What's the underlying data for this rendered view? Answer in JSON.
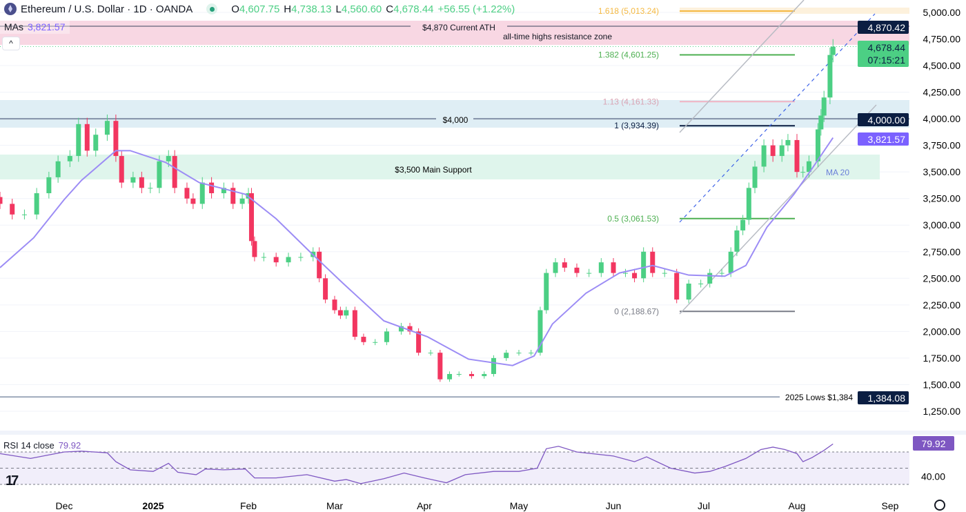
{
  "header": {
    "symbol": "Ethereum / U.S. Dollar · 1D · OANDA",
    "o_label": "O",
    "o": "4,607.75",
    "h_label": "H",
    "h": "4,738.13",
    "l_label": "L",
    "l": "4,560.60",
    "c_label": "C",
    "c": "4,678.44",
    "change": "+56.55 (+1.22%)"
  },
  "mas": {
    "label": "MAs",
    "value": "3,821.57"
  },
  "rsi": {
    "label": "RSI 14 close",
    "value": "79.92",
    "axis_label": "40.00",
    "badge": "79.92"
  },
  "colors": {
    "up": "#4ccf84",
    "down": "#f23660",
    "ma": "#9c8cf5",
    "rsi": "#7e57c2",
    "navy": "#0b1e42",
    "ath_zone": "#f8d7e3",
    "zone_4000": "#dfeef5",
    "support_zone": "#dff5ec"
  },
  "chart_data": {
    "type": "candlestick",
    "ylim": [
      1150,
      5080
    ],
    "yticks": [
      "5,000.00",
      "4,750.00",
      "4,500.00",
      "4,250.00",
      "4,000.00",
      "3,750.00",
      "3,500.00",
      "3,250.00",
      "3,000.00",
      "2,750.00",
      "2,500.00",
      "2,250.00",
      "2,000.00",
      "1,750.00",
      "1,500.00",
      "1,250.00"
    ],
    "ytick_values": [
      5000,
      4750,
      4500,
      4250,
      4000,
      3750,
      3500,
      3250,
      3000,
      2750,
      2500,
      2250,
      2000,
      1750,
      1500,
      1250
    ],
    "xticks": [
      {
        "label": "Dec",
        "date": "2024-12-01"
      },
      {
        "label": "2025",
        "date": "2025-01-01"
      },
      {
        "label": "Feb",
        "date": "2025-02-01"
      },
      {
        "label": "Mar",
        "date": "2025-03-01"
      },
      {
        "label": "Apr",
        "date": "2025-04-01"
      },
      {
        "label": "May",
        "date": "2025-05-01"
      },
      {
        "label": "Jun",
        "date": "2025-06-01"
      },
      {
        "label": "Jul",
        "date": "2025-07-01"
      },
      {
        "label": "Aug",
        "date": "2025-08-01"
      },
      {
        "label": "Sep",
        "date": "2025-09-01"
      }
    ],
    "closes": [
      [
        "2024-11-10",
        3200
      ],
      [
        "2024-11-14",
        3100
      ],
      [
        "2024-11-18",
        3100
      ],
      [
        "2024-11-22",
        3300
      ],
      [
        "2024-11-26",
        3450
      ],
      [
        "2024-11-29",
        3600
      ],
      [
        "2024-12-03",
        3650
      ],
      [
        "2024-12-06",
        3950
      ],
      [
        "2024-12-09",
        3700
      ],
      [
        "2024-12-12",
        3850
      ],
      [
        "2024-12-16",
        3980
      ],
      [
        "2024-12-19",
        3650
      ],
      [
        "2024-12-21",
        3400
      ],
      [
        "2024-12-25",
        3450
      ],
      [
        "2024-12-28",
        3350
      ],
      [
        "2024-12-31",
        3350
      ],
      [
        "2025-01-03",
        3600
      ],
      [
        "2025-01-06",
        3650
      ],
      [
        "2025-01-08",
        3350
      ],
      [
        "2025-01-12",
        3250
      ],
      [
        "2025-01-14",
        3200
      ],
      [
        "2025-01-17",
        3400
      ],
      [
        "2025-01-20",
        3300
      ],
      [
        "2025-01-24",
        3350
      ],
      [
        "2025-01-27",
        3200
      ],
      [
        "2025-01-30",
        3250
      ],
      [
        "2025-02-01",
        3300
      ],
      [
        "2025-02-02",
        2850
      ],
      [
        "2025-02-03",
        2700
      ],
      [
        "2025-02-06",
        2700
      ],
      [
        "2025-02-10",
        2650
      ],
      [
        "2025-02-14",
        2700
      ],
      [
        "2025-02-18",
        2700
      ],
      [
        "2025-02-22",
        2750
      ],
      [
        "2025-02-24",
        2500
      ],
      [
        "2025-02-26",
        2300
      ],
      [
        "2025-03-01",
        2200
      ],
      [
        "2025-03-03",
        2150
      ],
      [
        "2025-03-05",
        2200
      ],
      [
        "2025-03-08",
        1950
      ],
      [
        "2025-03-11",
        1900
      ],
      [
        "2025-03-15",
        1900
      ],
      [
        "2025-03-19",
        2000
      ],
      [
        "2025-03-24",
        2050
      ],
      [
        "2025-03-27",
        2000
      ],
      [
        "2025-03-30",
        1800
      ],
      [
        "2025-04-03",
        1800
      ],
      [
        "2025-04-06",
        1550
      ],
      [
        "2025-04-09",
        1600
      ],
      [
        "2025-04-12",
        1600
      ],
      [
        "2025-04-16",
        1580
      ],
      [
        "2025-04-20",
        1600
      ],
      [
        "2025-04-23",
        1750
      ],
      [
        "2025-04-27",
        1800
      ],
      [
        "2025-05-01",
        1800
      ],
      [
        "2025-05-05",
        1800
      ],
      [
        "2025-05-08",
        2200
      ],
      [
        "2025-05-10",
        2550
      ],
      [
        "2025-05-13",
        2650
      ],
      [
        "2025-05-16",
        2600
      ],
      [
        "2025-05-20",
        2550
      ],
      [
        "2025-05-24",
        2550
      ],
      [
        "2025-05-28",
        2650
      ],
      [
        "2025-06-01",
        2550
      ],
      [
        "2025-06-05",
        2550
      ],
      [
        "2025-06-08",
        2500
      ],
      [
        "2025-06-11",
        2750
      ],
      [
        "2025-06-14",
        2550
      ],
      [
        "2025-06-18",
        2550
      ],
      [
        "2025-06-22",
        2300
      ],
      [
        "2025-06-26",
        2450
      ],
      [
        "2025-06-30",
        2450
      ],
      [
        "2025-07-03",
        2550
      ],
      [
        "2025-07-07",
        2550
      ],
      [
        "2025-07-10",
        2750
      ],
      [
        "2025-07-12",
        2950
      ],
      [
        "2025-07-14",
        3050
      ],
      [
        "2025-07-16",
        3350
      ],
      [
        "2025-07-18",
        3550
      ],
      [
        "2025-07-21",
        3750
      ],
      [
        "2025-07-24",
        3650
      ],
      [
        "2025-07-27",
        3750
      ],
      [
        "2025-07-29",
        3800
      ],
      [
        "2025-08-01",
        3500
      ],
      [
        "2025-08-03",
        3500
      ],
      [
        "2025-08-05",
        3600
      ],
      [
        "2025-08-08",
        3900
      ],
      [
        "2025-08-09",
        4030
      ],
      [
        "2025-08-10",
        4200
      ],
      [
        "2025-08-12",
        4600
      ],
      [
        "2025-08-13",
        4678.44
      ]
    ],
    "ma20": [
      [
        "2024-11-10",
        2600
      ],
      [
        "2024-11-21",
        2880
      ],
      [
        "2024-12-01",
        3240
      ],
      [
        "2024-12-07",
        3420
      ],
      [
        "2024-12-19",
        3700
      ],
      [
        "2024-12-24",
        3700
      ],
      [
        "2025-01-05",
        3590
      ],
      [
        "2025-01-16",
        3400
      ],
      [
        "2025-01-31",
        3290
      ],
      [
        "2025-02-10",
        3060
      ],
      [
        "2025-02-22",
        2720
      ],
      [
        "2025-03-04",
        2450
      ],
      [
        "2025-03-18",
        2100
      ],
      [
        "2025-04-02",
        1950
      ],
      [
        "2025-04-15",
        1740
      ],
      [
        "2025-04-29",
        1680
      ],
      [
        "2025-05-06",
        1770
      ],
      [
        "2025-05-12",
        2070
      ],
      [
        "2025-05-23",
        2360
      ],
      [
        "2025-06-03",
        2550
      ],
      [
        "2025-06-14",
        2620
      ],
      [
        "2025-06-26",
        2530
      ],
      [
        "2025-07-08",
        2520
      ],
      [
        "2025-07-15",
        2620
      ],
      [
        "2025-07-22",
        2980
      ],
      [
        "2025-07-31",
        3290
      ],
      [
        "2025-08-06",
        3530
      ],
      [
        "2025-08-13",
        3821.57
      ]
    ],
    "rsi": [
      [
        "2024-11-10",
        68
      ],
      [
        "2024-11-20",
        62
      ],
      [
        "2024-12-01",
        70
      ],
      [
        "2024-12-07",
        71
      ],
      [
        "2024-12-16",
        69
      ],
      [
        "2024-12-19",
        58
      ],
      [
        "2024-12-24",
        48
      ],
      [
        "2025-01-01",
        46
      ],
      [
        "2025-01-06",
        56
      ],
      [
        "2025-01-09",
        45
      ],
      [
        "2025-01-15",
        42
      ],
      [
        "2025-01-18",
        49
      ],
      [
        "2025-01-24",
        48
      ],
      [
        "2025-01-31",
        49
      ],
      [
        "2025-02-03",
        38
      ],
      [
        "2025-02-10",
        38
      ],
      [
        "2025-02-20",
        42
      ],
      [
        "2025-03-01",
        34
      ],
      [
        "2025-03-05",
        36
      ],
      [
        "2025-03-10",
        31
      ],
      [
        "2025-03-18",
        37
      ],
      [
        "2025-03-25",
        44
      ],
      [
        "2025-04-01",
        38
      ],
      [
        "2025-04-08",
        32
      ],
      [
        "2025-04-14",
        42
      ],
      [
        "2025-04-23",
        46
      ],
      [
        "2025-05-01",
        46
      ],
      [
        "2025-05-07",
        50
      ],
      [
        "2025-05-10",
        74
      ],
      [
        "2025-05-14",
        77
      ],
      [
        "2025-05-20",
        70
      ],
      [
        "2025-06-01",
        65
      ],
      [
        "2025-06-08",
        58
      ],
      [
        "2025-06-12",
        64
      ],
      [
        "2025-06-20",
        50
      ],
      [
        "2025-06-28",
        44
      ],
      [
        "2025-07-03",
        46
      ],
      [
        "2025-07-08",
        52
      ],
      [
        "2025-07-15",
        62
      ],
      [
        "2025-07-20",
        73
      ],
      [
        "2025-07-24",
        76
      ],
      [
        "2025-07-28",
        73
      ],
      [
        "2025-08-01",
        68
      ],
      [
        "2025-08-03",
        58
      ],
      [
        "2025-08-06",
        63
      ],
      [
        "2025-08-10",
        72
      ],
      [
        "2025-08-13",
        79.92
      ]
    ],
    "fib_levels": [
      {
        "label": "1.618 (5,013.24)",
        "value": 5013.24,
        "color": "#f5b942"
      },
      {
        "label": "1.382 (4,601.25)",
        "value": 4601.25,
        "color": "#4caf50"
      },
      {
        "label": "1.13 (4,161.33)",
        "value": 4161.33,
        "color": "#f1b3c3"
      },
      {
        "label": "1 (3,934.39)",
        "value": 3934.39,
        "color": "#0b1e42"
      },
      {
        "label": "0.5 (3,061.53)",
        "value": 3061.53,
        "color": "#4caf50"
      },
      {
        "label": "0 (2,188.67)",
        "value": 2188.67,
        "color": "#787b86"
      }
    ],
    "annotations": {
      "ath": "$4,870 Current ATH",
      "ath_zone": "all-time highs resistance zone",
      "level_4000": "$4,000",
      "support": "$3,500 Main Support",
      "lows": "2025 Lows $1,384",
      "ma_label": "MA 20"
    },
    "price_badges": {
      "ath": "4,870.42",
      "current": "4,678.44",
      "countdown": "07:15:21",
      "level_4000": "4,000.00",
      "ma": "3,821.57",
      "lows": "1,384.08"
    }
  }
}
